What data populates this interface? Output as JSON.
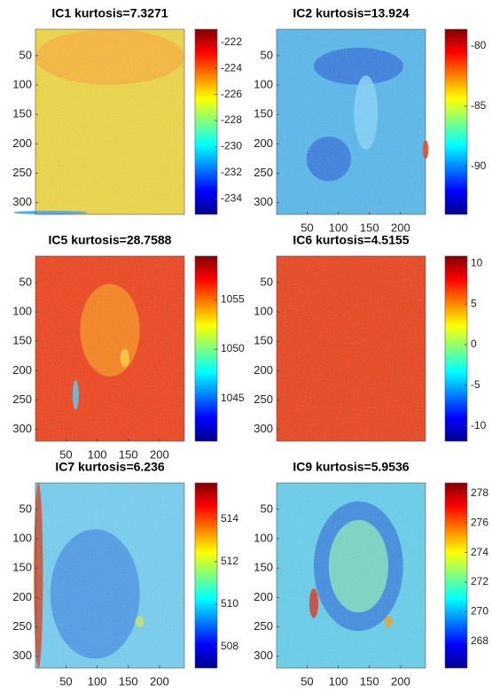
{
  "chart_data": [
    {
      "type": "heatmap",
      "title": "IC1  kurtosis=7.3271",
      "colormap": "jet",
      "xlim": [
        1,
        240
      ],
      "ylim": [
        5,
        320
      ],
      "yticks": [
        50,
        100,
        150,
        200,
        250,
        300
      ],
      "clim": [
        -235.2,
        -221
      ],
      "cticks": [
        -222,
        -224,
        -226,
        -228,
        -230,
        -232,
        -234
      ]
    },
    {
      "type": "heatmap",
      "title": "IC2  kurtosis=13.924",
      "colormap": "jet",
      "xlim": [
        1,
        240
      ],
      "ylim": [
        5,
        320
      ],
      "xticks": [
        50,
        100,
        150,
        200
      ],
      "yticks": [
        50,
        100,
        150,
        200,
        250,
        300
      ],
      "clim": [
        -94,
        -78.6
      ],
      "cticks": [
        -80,
        -85,
        -90
      ]
    },
    {
      "type": "heatmap",
      "title": "IC5  kurtosis=28.7588",
      "colormap": "jet",
      "xlim": [
        1,
        240
      ],
      "ylim": [
        5,
        320
      ],
      "xticks": [
        50,
        100,
        150,
        200
      ],
      "yticks": [
        50,
        100,
        150,
        200,
        250,
        300
      ],
      "clim": [
        1040.7,
        1059.4
      ],
      "cticks": [
        1055,
        1050,
        1045
      ]
    },
    {
      "type": "heatmap",
      "title": "IC6  kurtosis=4.5155",
      "colormap": "jet",
      "xlim": [
        1,
        240
      ],
      "ylim": [
        5,
        320
      ],
      "yticks": [
        50,
        100,
        150,
        200,
        250,
        300
      ],
      "clim": [
        -11.9,
        10.9
      ],
      "cticks": [
        10,
        5,
        0,
        -5,
        -10
      ]
    },
    {
      "type": "heatmap",
      "title": "IC7  kurtosis=6.236",
      "colormap": "jet",
      "xlim": [
        1,
        240
      ],
      "ylim": [
        5,
        320
      ],
      "xticks": [
        50,
        100,
        150,
        200
      ],
      "yticks": [
        50,
        100,
        150,
        200,
        250,
        300
      ],
      "clim": [
        507,
        515.7
      ],
      "cticks": [
        514,
        512,
        510,
        508
      ]
    },
    {
      "type": "heatmap",
      "title": "IC9  kurtosis=5.9536",
      "colormap": "jet",
      "xlim": [
        1,
        240
      ],
      "ylim": [
        5,
        320
      ],
      "xticks": [
        50,
        100,
        150,
        200
      ],
      "yticks": [
        50,
        100,
        150,
        200,
        250,
        300
      ],
      "clim": [
        266.2,
        278.7
      ],
      "cticks": [
        278,
        276,
        274,
        272,
        270,
        268
      ]
    }
  ]
}
